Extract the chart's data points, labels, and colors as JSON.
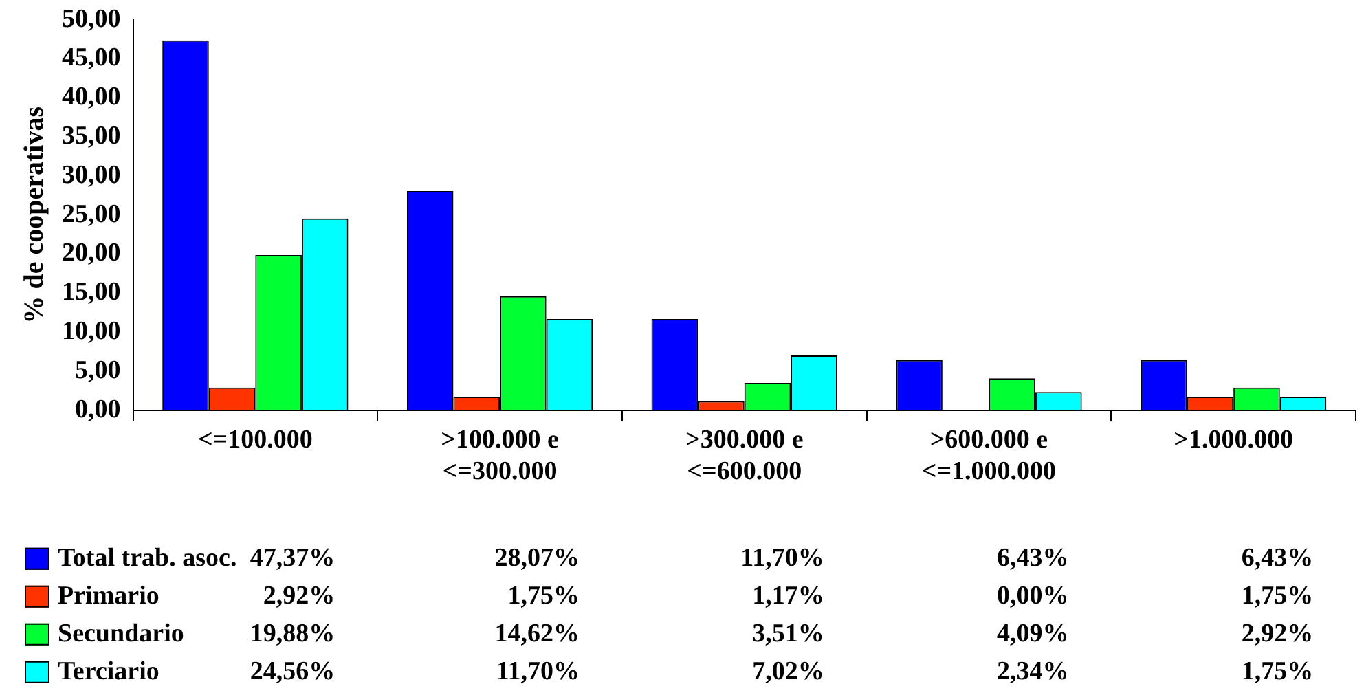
{
  "chart_data": {
    "type": "bar",
    "ylabel": "% de cooperativas",
    "categories": [
      "<=100.000",
      ">100.000 e\n<=300.000",
      ">300.000 e\n<=600.000",
      ">600.000 e\n<=1.000.000",
      ">1.000.000"
    ],
    "series": [
      {
        "name": "Total trab. asoc.",
        "color": "#0000ff",
        "values": [
          47.37,
          28.07,
          11.7,
          6.43,
          6.43
        ],
        "value_labels": [
          "47,37%",
          "28,07%",
          "11,70%",
          "6,43%",
          "6,43%"
        ]
      },
      {
        "name": "Primario",
        "color": "#ff3300",
        "values": [
          2.92,
          1.75,
          1.17,
          0.0,
          1.75
        ],
        "value_labels": [
          "2,92%",
          "1,75%",
          "1,17%",
          "0,00%",
          "1,75%"
        ]
      },
      {
        "name": "Secundario",
        "color": "#00ff33",
        "values": [
          19.88,
          14.62,
          3.51,
          4.09,
          2.92
        ],
        "value_labels": [
          "19,88%",
          "14,62%",
          "3,51%",
          "4,09%",
          "2,92%"
        ]
      },
      {
        "name": "Terciario",
        "color": "#00ffff",
        "values": [
          24.56,
          11.7,
          7.02,
          2.34,
          1.75
        ],
        "value_labels": [
          "24,56%",
          "11,70%",
          "7,02%",
          "2,34%",
          "1,75%"
        ]
      }
    ],
    "ylim": [
      0,
      50
    ],
    "yticks": [
      {
        "value": 0,
        "label": "0,00"
      },
      {
        "value": 5,
        "label": "5,00"
      },
      {
        "value": 10,
        "label": "10,00"
      },
      {
        "value": 15,
        "label": "15,00"
      },
      {
        "value": 20,
        "label": "20,00"
      },
      {
        "value": 25,
        "label": "25,00"
      },
      {
        "value": 30,
        "label": "30,00"
      },
      {
        "value": 35,
        "label": "35,00"
      },
      {
        "value": 40,
        "label": "40,00"
      },
      {
        "value": 45,
        "label": "45,00"
      },
      {
        "value": 50,
        "label": "50,00"
      }
    ],
    "grid": false,
    "legend": "bottom"
  }
}
